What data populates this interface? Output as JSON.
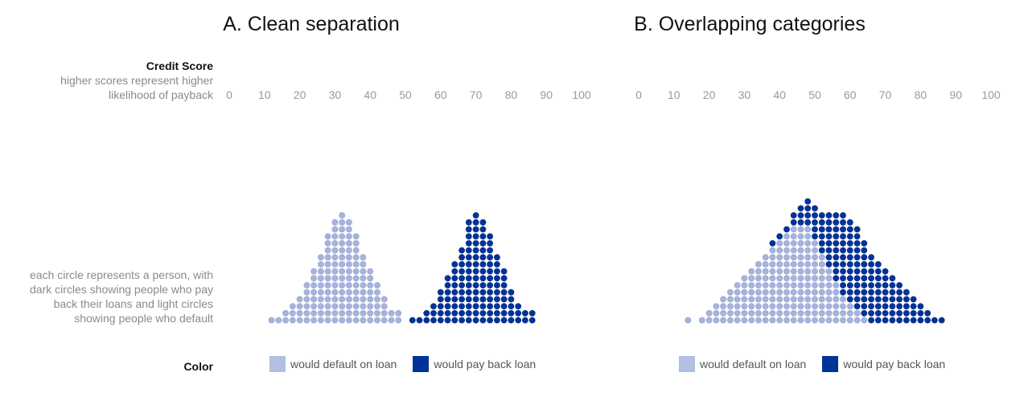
{
  "side_labels": {
    "credit_score_title": "Credit Score",
    "credit_score_sub_line1": "higher scores represent higher",
    "credit_score_sub_line2": "likelihood of payback",
    "circle_explainer_lines": [
      "each circle represents a person, with",
      "dark circles showing people who pay",
      "back their loans and light circles",
      "showing people who default"
    ],
    "color_label": "Color"
  },
  "colors": {
    "default_fill": "#a6b4dc",
    "default_stroke": "#8d9ed0",
    "payback_fill": "#003399",
    "payback_stroke": "#002a80",
    "default_swatch": "#b2bfe2",
    "payback_swatch": "#003399"
  },
  "legend": {
    "default_label": "would default on loan",
    "payback_label": "would pay back loan"
  },
  "chart_data": [
    {
      "type": "scatter",
      "title": "A. Clean separation",
      "xlabel": "Credit Score",
      "xlim": [
        0,
        100
      ],
      "xticks": [
        0,
        10,
        20,
        30,
        40,
        50,
        60,
        70,
        80,
        90,
        100
      ],
      "bin_width": 2,
      "series": [
        {
          "name": "would default on loan",
          "color": "default",
          "bins": [
            {
              "x": 12,
              "count": 1
            },
            {
              "x": 14,
              "count": 1
            },
            {
              "x": 16,
              "count": 2
            },
            {
              "x": 18,
              "count": 3
            },
            {
              "x": 20,
              "count": 4
            },
            {
              "x": 22,
              "count": 6
            },
            {
              "x": 24,
              "count": 8
            },
            {
              "x": 26,
              "count": 10
            },
            {
              "x": 28,
              "count": 13
            },
            {
              "x": 30,
              "count": 15
            },
            {
              "x": 32,
              "count": 16
            },
            {
              "x": 34,
              "count": 15
            },
            {
              "x": 36,
              "count": 13
            },
            {
              "x": 38,
              "count": 10
            },
            {
              "x": 40,
              "count": 8
            },
            {
              "x": 42,
              "count": 6
            },
            {
              "x": 44,
              "count": 4
            },
            {
              "x": 46,
              "count": 2
            },
            {
              "x": 48,
              "count": 2
            }
          ]
        },
        {
          "name": "would pay back loan",
          "color": "payback",
          "bins": [
            {
              "x": 52,
              "count": 1
            },
            {
              "x": 54,
              "count": 1
            },
            {
              "x": 56,
              "count": 2
            },
            {
              "x": 58,
              "count": 3
            },
            {
              "x": 60,
              "count": 5
            },
            {
              "x": 62,
              "count": 7
            },
            {
              "x": 64,
              "count": 9
            },
            {
              "x": 66,
              "count": 11
            },
            {
              "x": 68,
              "count": 15
            },
            {
              "x": 70,
              "count": 16
            },
            {
              "x": 72,
              "count": 15
            },
            {
              "x": 74,
              "count": 13
            },
            {
              "x": 76,
              "count": 10
            },
            {
              "x": 78,
              "count": 8
            },
            {
              "x": 80,
              "count": 5
            },
            {
              "x": 82,
              "count": 3
            },
            {
              "x": 84,
              "count": 2
            },
            {
              "x": 86,
              "count": 2
            }
          ]
        }
      ]
    },
    {
      "type": "scatter",
      "title": "B. Overlapping categories",
      "xlabel": "Credit Score",
      "xlim": [
        0,
        100
      ],
      "xticks": [
        0,
        10,
        20,
        30,
        40,
        50,
        60,
        70,
        80,
        90,
        100
      ],
      "bin_width": 2,
      "series": [
        {
          "name": "would default on loan",
          "color": "default",
          "bins": [
            {
              "x": 14,
              "count": 1
            },
            {
              "x": 18,
              "count": 1
            },
            {
              "x": 20,
              "count": 2
            },
            {
              "x": 22,
              "count": 3
            },
            {
              "x": 24,
              "count": 4
            },
            {
              "x": 26,
              "count": 5
            },
            {
              "x": 28,
              "count": 6
            },
            {
              "x": 30,
              "count": 7
            },
            {
              "x": 32,
              "count": 8
            },
            {
              "x": 34,
              "count": 9
            },
            {
              "x": 36,
              "count": 10
            },
            {
              "x": 38,
              "count": 11
            },
            {
              "x": 40,
              "count": 12
            },
            {
              "x": 42,
              "count": 13
            },
            {
              "x": 44,
              "count": 14
            },
            {
              "x": 46,
              "count": 14
            },
            {
              "x": 48,
              "count": 14
            },
            {
              "x": 50,
              "count": 12
            },
            {
              "x": 52,
              "count": 10
            },
            {
              "x": 54,
              "count": 8
            },
            {
              "x": 56,
              "count": 6
            },
            {
              "x": 58,
              "count": 4
            },
            {
              "x": 60,
              "count": 3
            },
            {
              "x": 62,
              "count": 2
            },
            {
              "x": 64,
              "count": 1
            }
          ]
        },
        {
          "name": "would pay back loan",
          "color": "payback",
          "bins": [
            {
              "x": 38,
              "count": 1
            },
            {
              "x": 40,
              "count": 1
            },
            {
              "x": 42,
              "count": 1
            },
            {
              "x": 44,
              "count": 2
            },
            {
              "x": 46,
              "count": 3
            },
            {
              "x": 48,
              "count": 4
            },
            {
              "x": 50,
              "count": 5
            },
            {
              "x": 52,
              "count": 6
            },
            {
              "x": 54,
              "count": 8
            },
            {
              "x": 56,
              "count": 10
            },
            {
              "x": 58,
              "count": 12
            },
            {
              "x": 60,
              "count": 12
            },
            {
              "x": 62,
              "count": 12
            },
            {
              "x": 64,
              "count": 11
            },
            {
              "x": 66,
              "count": 10
            },
            {
              "x": 68,
              "count": 9
            },
            {
              "x": 70,
              "count": 8
            },
            {
              "x": 72,
              "count": 7
            },
            {
              "x": 74,
              "count": 6
            },
            {
              "x": 76,
              "count": 5
            },
            {
              "x": 78,
              "count": 4
            },
            {
              "x": 80,
              "count": 3
            },
            {
              "x": 82,
              "count": 2
            },
            {
              "x": 84,
              "count": 1
            },
            {
              "x": 86,
              "count": 1
            }
          ]
        }
      ]
    }
  ]
}
